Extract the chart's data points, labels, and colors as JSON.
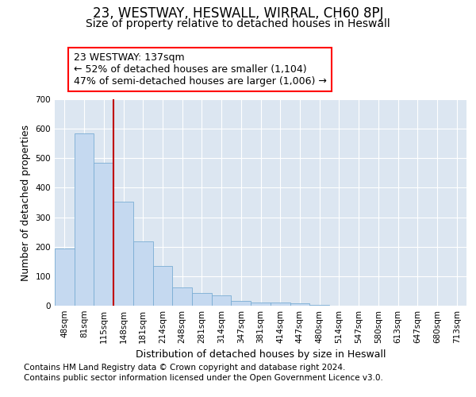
{
  "title": "23, WESTWAY, HESWALL, WIRRAL, CH60 8PJ",
  "subtitle": "Size of property relative to detached houses in Heswall",
  "xlabel": "Distribution of detached houses by size in Heswall",
  "ylabel": "Number of detached properties",
  "footer_line1": "Contains HM Land Registry data © Crown copyright and database right 2024.",
  "footer_line2": "Contains public sector information licensed under the Open Government Licence v3.0.",
  "bar_labels": [
    "48sqm",
    "81sqm",
    "115sqm",
    "148sqm",
    "181sqm",
    "214sqm",
    "248sqm",
    "281sqm",
    "314sqm",
    "347sqm",
    "381sqm",
    "414sqm",
    "447sqm",
    "480sqm",
    "514sqm",
    "547sqm",
    "580sqm",
    "613sqm",
    "647sqm",
    "680sqm",
    "713sqm"
  ],
  "bar_values": [
    193,
    583,
    485,
    352,
    218,
    134,
    63,
    44,
    34,
    17,
    10,
    10,
    7,
    3,
    1,
    1,
    0,
    0,
    0,
    0,
    0
  ],
  "bar_color": "#c5d9f0",
  "bar_edge_color": "#7aadd4",
  "vline_x": 3.0,
  "vline_color": "#c00000",
  "annotation_line1": "23 WESTWAY: 137sqm",
  "annotation_line2": "← 52% of detached houses are smaller (1,104)",
  "annotation_line3": "47% of semi-detached houses are larger (1,006) →",
  "ylim_max": 700,
  "yticks": [
    0,
    100,
    200,
    300,
    400,
    500,
    600,
    700
  ],
  "plot_bg_color": "#dce6f1",
  "fig_bg_color": "#ffffff",
  "grid_color": "#ffffff",
  "title_fontsize": 12,
  "subtitle_fontsize": 10,
  "axis_label_fontsize": 9,
  "tick_fontsize": 7.5,
  "annotation_fontsize": 9,
  "footer_fontsize": 7.5
}
